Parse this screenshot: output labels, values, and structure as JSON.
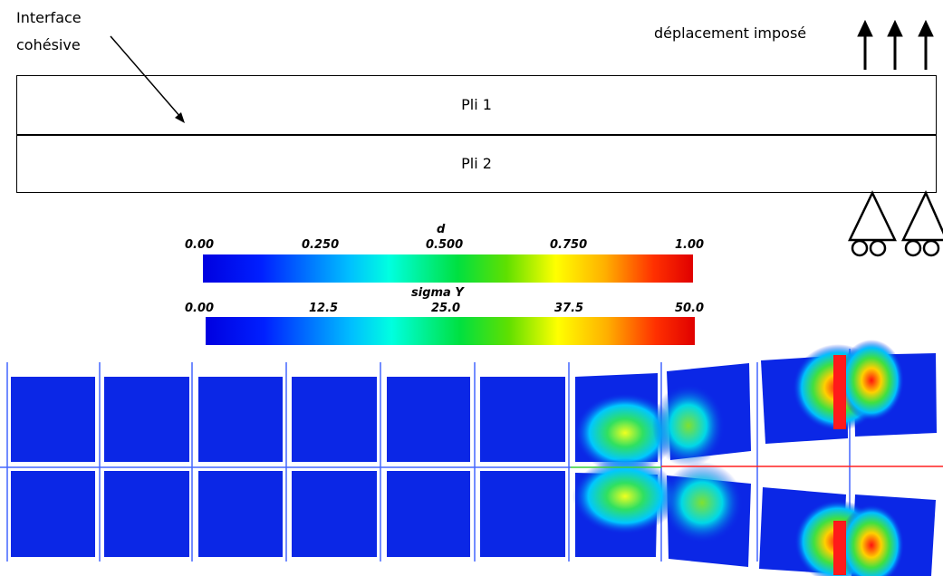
{
  "labels": {
    "interface": [
      "Interface",
      "cohésive"
    ],
    "displacement": "déplacement imposé",
    "ply1": "Pli 1",
    "ply2": "Pli 2"
  },
  "colorbar_d": {
    "title": "d",
    "ticks": [
      "0.00",
      "0.250",
      "0.500",
      "0.750",
      "1.00"
    ]
  },
  "colorbar_sigma": {
    "title": "sigma Y",
    "ticks": [
      "0.00",
      "12.5",
      "25.0",
      "37.5",
      "50.0"
    ]
  },
  "colors": {
    "element_blue": "#0b27e6",
    "interface_red": "#ff2020",
    "gap_line": "#4466ff"
  },
  "mesh": {
    "rows": 2,
    "columns": 10,
    "intact_columns": 6,
    "damaged_columns": 4
  }
}
